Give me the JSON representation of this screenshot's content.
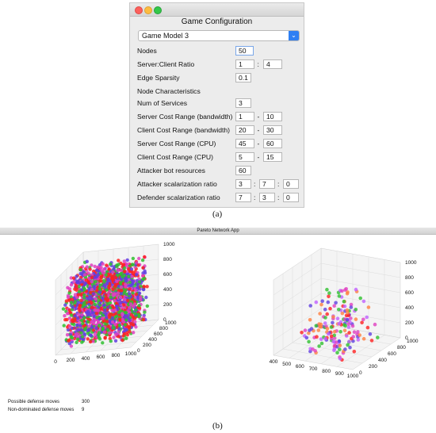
{
  "config": {
    "title": "Game Configuration",
    "model_selected": "Game Model 3",
    "rows": [
      {
        "label": "Nodes",
        "fields": [
          "50"
        ],
        "seps": []
      },
      {
        "label": "Server:Client Ratio",
        "fields": [
          "1",
          "4"
        ],
        "seps": [
          ":"
        ]
      },
      {
        "label": "Edge Sparsity",
        "fields": [
          "0.1"
        ],
        "seps": []
      },
      {
        "label": "Node Characteristics",
        "fields": [],
        "seps": []
      },
      {
        "label": "Num of Services",
        "fields": [
          "3"
        ],
        "seps": []
      },
      {
        "label": "Server Cost Range (bandwidth)",
        "fields": [
          "1",
          "10"
        ],
        "seps": [
          "-"
        ]
      },
      {
        "label": "Client Cost Range (bandwidth)",
        "fields": [
          "20",
          "30"
        ],
        "seps": [
          "-"
        ]
      },
      {
        "label": "Server Cost Range (CPU)",
        "fields": [
          "45",
          "60"
        ],
        "seps": [
          "-"
        ]
      },
      {
        "label": "Client Cost Range (CPU)",
        "fields": [
          "5",
          "15"
        ],
        "seps": [
          "-"
        ]
      },
      {
        "label": "Attacker bot resources",
        "fields": [
          "60"
        ],
        "seps": []
      },
      {
        "label": "Attacker scalarization ratio",
        "fields": [
          "3",
          "7",
          "0"
        ],
        "seps": [
          ":",
          ":"
        ]
      },
      {
        "label": "Defender scalarization ratio",
        "fields": [
          "7",
          "3",
          "0"
        ],
        "seps": [
          ":",
          ":"
        ]
      }
    ]
  },
  "captions": {
    "a": "(a)",
    "b": "(b)"
  },
  "app": {
    "title": "Pareto Network App",
    "possible_label": "Possible defense moves",
    "possible_value": "300",
    "nondominated_label": "Non-dominated defense moves",
    "nondominated_value": "9"
  },
  "plots": {
    "left": {
      "x_ticks": [
        "0",
        "200",
        "400",
        "600",
        "800",
        "1000"
      ],
      "y_ticks": [
        "0",
        "200",
        "400",
        "600",
        "800",
        "1000"
      ],
      "z_ticks": [
        "0",
        "200",
        "400",
        "600",
        "800",
        "1000"
      ]
    },
    "right": {
      "x_ticks": [
        "400",
        "500",
        "600",
        "700",
        "800",
        "900",
        "1000"
      ],
      "y_ticks": [
        "0",
        "200",
        "400",
        "600",
        "800",
        "1000"
      ],
      "z_ticks": [
        "0",
        "200",
        "400",
        "600",
        "800",
        "1000"
      ]
    },
    "colors": [
      "#ff2020",
      "#30c030",
      "#6040e0",
      "#e040c0",
      "#ff8040",
      "#c060ff"
    ]
  }
}
